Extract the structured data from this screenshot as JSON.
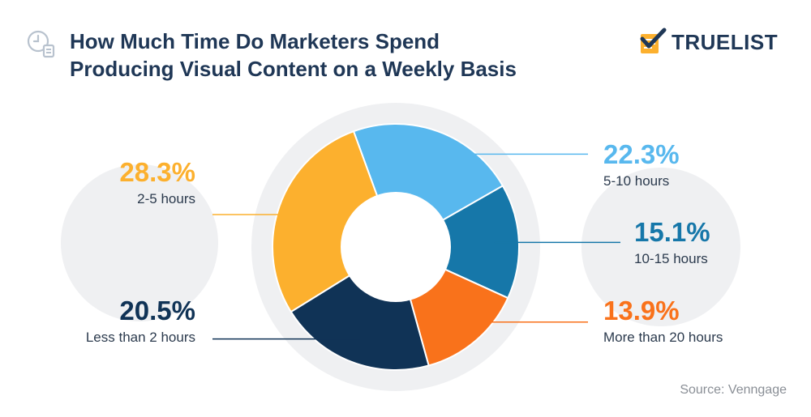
{
  "header": {
    "title_line1": "How Much Time Do Marketers Spend",
    "title_line2": "Producing Visual Content on a Weekly Basis",
    "icon": "clock-document-icon"
  },
  "logo": {
    "text": "TRUELIST",
    "icon": "checkmark-notepad-icon"
  },
  "colors": {
    "title": "#1f3756",
    "backdrop": "#eff0f2",
    "light_blue": "#58b8ee",
    "mid_blue": "#1677a9",
    "orange": "#f9721b",
    "navy": "#103356",
    "yellow": "#fcb02e"
  },
  "chart_data": {
    "type": "pie",
    "variant": "donut",
    "slices": [
      {
        "label": "5-10 hours",
        "value": 22.3,
        "display": "22.3%",
        "color": "#58b8ee"
      },
      {
        "label": "10-15 hours",
        "value": 15.1,
        "display": "15.1%",
        "color": "#1677a9"
      },
      {
        "label": "More than 20 hours",
        "value": 13.9,
        "display": "13.9%",
        "color": "#f9721b"
      },
      {
        "label": "Less than 2 hours",
        "value": 20.5,
        "display": "20.5%",
        "color": "#103356"
      },
      {
        "label": "2-5 hours",
        "value": 28.3,
        "display": "28.3%",
        "color": "#fcb02e"
      }
    ]
  },
  "source": "Source: Venngage"
}
